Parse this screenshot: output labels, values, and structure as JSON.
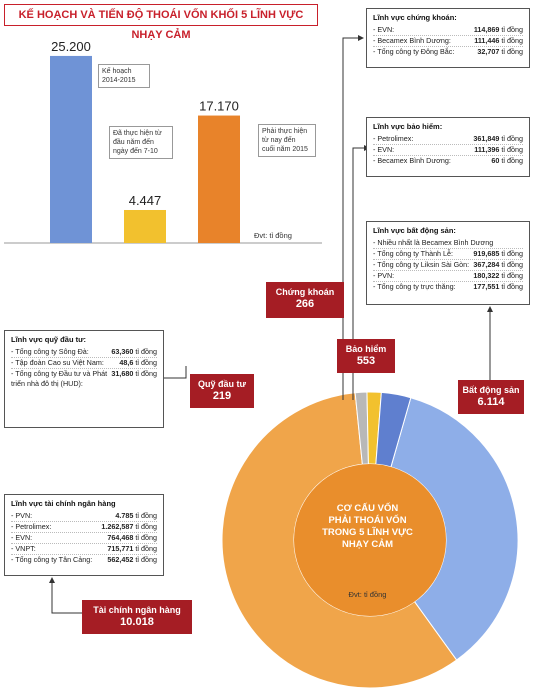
{
  "title": "KẾ HOẠCH VÀ TIẾN ĐỘ THOÁI VỐN KHỐI 5 LĨNH VỰC NHẠY CẢM",
  "bar_chart": {
    "type": "bar",
    "unit": "Đvt: tỉ đồng",
    "categories": [
      "Kế hoạch 2014-2015",
      "Đã thực hiện từ đầu năm đến ngày đến 7-10",
      "Phải thực hiện từ nay đến cuối năm 2015"
    ],
    "values": [
      25200,
      4447,
      17170
    ],
    "value_labels": [
      "25.200",
      "4.447",
      "17.170"
    ],
    "notes": [
      "Kế hoạch\n2014-2015",
      "Đã thực hiện từ\nđầu năm đến\nngày đến 7-10",
      "Phải thực hiện\ntừ nay đến\ncuối năm 2015"
    ],
    "colors": [
      "#6f93d6",
      "#f2c12e",
      "#e8832a"
    ],
    "ylim": [
      0,
      26000
    ]
  },
  "chart_data": {
    "type": "pie",
    "title": "CƠ CẤU VỐN PHẢI THOÁI VỐN TRONG 5 LĨNH VỰC NHẠY CẢM",
    "unit": "Đvt: tỉ đồng",
    "categories": [
      "Bất động sản",
      "Tài chính ngân hàng",
      "Quỹ đầu tư",
      "Chứng khoán",
      "Bảo hiểm"
    ],
    "values": [
      6114,
      10018,
      219,
      266,
      553
    ],
    "value_labels": [
      "6.114",
      "10.018",
      "219",
      "266",
      "553"
    ],
    "colors": [
      "#8eaee8",
      "#f0a54a",
      "#b8b8b8",
      "#f2c12e",
      "#5f7fcf"
    ]
  },
  "center_label": {
    "lines": [
      "CƠ CẤU VỐN",
      "PHẢI THOÁI VỐN",
      "TRONG 5 LĨNH VỰC",
      "NHẠY CẢM"
    ],
    "unit": "Đvt: tỉ đồng"
  },
  "labels": {
    "chung_khoan": {
      "name": "Chứng khoán",
      "value": "266"
    },
    "bao_hiem": {
      "name": "Bảo hiểm",
      "value": "553"
    },
    "bat_dong_san": {
      "name": "Bất động sản",
      "value": "6.114"
    },
    "quy_dau_tu": {
      "name": "Quỹ đầu tư",
      "value": "219"
    },
    "tai_chinh": {
      "name": "Tài chính ngân hàng",
      "value": "10.018"
    }
  },
  "boxes": {
    "chung_khoan": {
      "title": "Lĩnh vực chứng khoán:",
      "rows": [
        {
          "name": "- EVN:",
          "value": "114,869",
          "unit": "tỉ đồng"
        },
        {
          "name": "- Becamex Bình Dương:",
          "value": "111,446",
          "unit": "tỉ đồng"
        },
        {
          "name": "- Tổng công ty Đông Bắc:",
          "value": "32,707",
          "unit": "tỉ đồng"
        }
      ]
    },
    "bao_hiem": {
      "title": "Lĩnh vực bảo hiểm:",
      "rows": [
        {
          "name": "- Petrolimex:",
          "value": "361,849",
          "unit": "tỉ đồng"
        },
        {
          "name": "- EVN:",
          "value": "111,396",
          "unit": "tỉ đồng"
        },
        {
          "name": "- Becamex Bình Dương:",
          "value": "60",
          "unit": "tỉ đồng"
        }
      ]
    },
    "bat_dong_san": {
      "title": "Lĩnh vực bất động sản:",
      "note": "- Nhiều nhất là Becamex Bình Dương",
      "rows": [
        {
          "name": "- Tổng công ty Thành Lễ:",
          "value": "919,685",
          "unit": "tỉ đồng"
        },
        {
          "name": "- Tổng công ty Liksin Sài Gòn:",
          "value": "367,284",
          "unit": "tỉ đồng"
        },
        {
          "name": "- PVN:",
          "value": "180,322",
          "unit": "tỉ đồng"
        },
        {
          "name": "- Tổng công ty trực thăng:",
          "value": "177,551",
          "unit": "tỉ đồng"
        }
      ]
    },
    "quy_dau_tu": {
      "title": "Lĩnh vực quỹ đầu tư:",
      "rows": [
        {
          "name": "- Tổng công ty Sông Đà:",
          "value": "63,360",
          "unit": "tỉ đồng"
        },
        {
          "name": "- Tập đoàn Cao su Việt Nam:",
          "value": "48,6",
          "unit": "tỉ đồng"
        },
        {
          "name": "- Tổng công ty Đầu tư và Phát triển nhà đô thị (HUD):",
          "value": "31,680",
          "unit": "tỉ đồng"
        }
      ]
    },
    "tai_chinh": {
      "title": "Lĩnh vực tài chính ngân hàng",
      "rows": [
        {
          "name": "- PVN:",
          "value": "4.785",
          "unit": "tỉ đồng"
        },
        {
          "name": "- Petrolimex:",
          "value": "1.262,587",
          "unit": "tỉ đồng"
        },
        {
          "name": "- EVN:",
          "value": "764,468",
          "unit": "tỉ đồng"
        },
        {
          "name": "- VNPT:",
          "value": "715,771",
          "unit": "tỉ đồng"
        },
        {
          "name": "- Tổng công ty Tân Cảng:",
          "value": "562,452",
          "unit": "tỉ đồng"
        }
      ]
    }
  }
}
